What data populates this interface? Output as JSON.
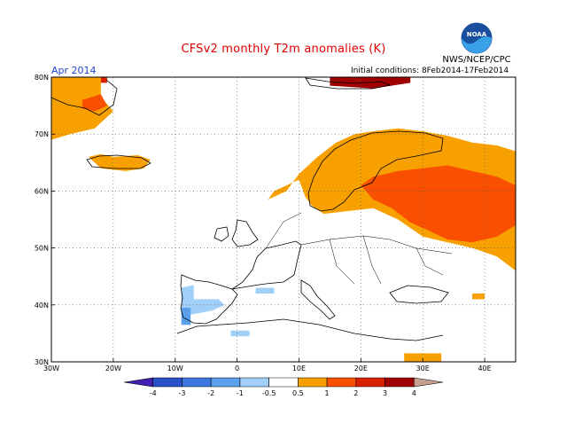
{
  "title": "CFSv2 monthly T2m anomalies (K)",
  "valid_month": "Apr 2014",
  "initial_conditions": "Initial conditions: 8Feb2014-17Feb2014",
  "agency": "NWS/NCEP/CPC",
  "logo_text": "NOAA",
  "map": {
    "lon_range": [
      -30,
      45
    ],
    "lat_range": [
      30,
      80
    ],
    "lon_ticks": [
      {
        "value": -30,
        "label": "30W"
      },
      {
        "value": -20,
        "label": "20W"
      },
      {
        "value": -10,
        "label": "10W"
      },
      {
        "value": 0,
        "label": "0"
      },
      {
        "value": 10,
        "label": "10E"
      },
      {
        "value": 20,
        "label": "20E"
      },
      {
        "value": 30,
        "label": "30E"
      },
      {
        "value": 40,
        "label": "40E"
      }
    ],
    "lat_ticks": [
      {
        "value": 30,
        "label": "30N"
      },
      {
        "value": 40,
        "label": "40N"
      },
      {
        "value": 50,
        "label": "50N"
      },
      {
        "value": 60,
        "label": "60N"
      },
      {
        "value": 70,
        "label": "70N"
      },
      {
        "value": 80,
        "label": "80N"
      }
    ]
  },
  "colorbar": {
    "labels": [
      "-4",
      "-3",
      "-2",
      "-1",
      "-0.5",
      "0.5",
      "1",
      "2",
      "3",
      "4"
    ],
    "colors": [
      "#4020b0",
      "#2850c8",
      "#3c78e0",
      "#5aa0ec",
      "#a0d0f8",
      "#ffffff",
      "#f8a000",
      "#f85000",
      "#d82000",
      "#a00000",
      "#c8a090"
    ]
  },
  "anomaly_regions": [
    {
      "name": "svalbard-far-west",
      "color": "#f8a000",
      "pts": [
        [
          -30,
          80
        ],
        [
          -22,
          80
        ],
        [
          -22,
          76.5
        ],
        [
          -20,
          74
        ],
        [
          -23,
          71
        ],
        [
          -27,
          70
        ],
        [
          -30,
          69
        ]
      ]
    },
    {
      "name": "greenland-red",
      "color": "#f85000",
      "pts": [
        [
          -25,
          76
        ],
        [
          -22,
          77
        ],
        [
          -21,
          75
        ],
        [
          -23,
          74
        ],
        [
          -25,
          74.5
        ]
      ]
    },
    {
      "name": "greenland-dark",
      "color": "#d82000",
      "pts": [
        [
          -22,
          80
        ],
        [
          -21,
          80
        ],
        [
          -21,
          79
        ],
        [
          -22,
          79
        ]
      ]
    },
    {
      "name": "iceland-orange",
      "color": "#f8a000",
      "pts": [
        [
          -24,
          66
        ],
        [
          -22,
          66.5
        ],
        [
          -20,
          66
        ],
        [
          -16,
          66.3
        ],
        [
          -14,
          65.5
        ],
        [
          -15,
          64
        ],
        [
          -18,
          63.5
        ],
        [
          -22,
          64
        ]
      ]
    },
    {
      "name": "scandinavia-russia-orange",
      "color": "#f8a000",
      "pts": [
        [
          10,
          62
        ],
        [
          6,
          60
        ],
        [
          5,
          58.5
        ],
        [
          8,
          60
        ],
        [
          10,
          63
        ],
        [
          13,
          66
        ],
        [
          16,
          68.5
        ],
        [
          19,
          70
        ],
        [
          22,
          70.5
        ],
        [
          26,
          71
        ],
        [
          30,
          70.5
        ],
        [
          34,
          69.7
        ],
        [
          38,
          68.5
        ],
        [
          42,
          68
        ],
        [
          45,
          67
        ],
        [
          45,
          46
        ],
        [
          42,
          48.5
        ],
        [
          38,
          50
        ],
        [
          34,
          51
        ],
        [
          30,
          52
        ],
        [
          26,
          55
        ],
        [
          22,
          57
        ],
        [
          18,
          56.5
        ],
        [
          14,
          56
        ],
        [
          12,
          57.5
        ],
        [
          11,
          59
        ]
      ]
    },
    {
      "name": "russia-red",
      "color": "#f85000",
      "pts": [
        [
          20,
          61
        ],
        [
          22,
          62.5
        ],
        [
          26,
          63.5
        ],
        [
          30,
          64
        ],
        [
          34,
          64.5
        ],
        [
          38,
          63.5
        ],
        [
          42,
          62.5
        ],
        [
          45,
          61
        ],
        [
          45,
          54
        ],
        [
          42,
          52
        ],
        [
          38,
          51
        ],
        [
          34,
          51.5
        ],
        [
          31,
          53
        ],
        [
          28,
          54.5
        ],
        [
          25,
          57
        ],
        [
          22,
          58.5
        ]
      ]
    },
    {
      "name": "arctic-dark-red",
      "color": "#a00000",
      "pts": [
        [
          15,
          80
        ],
        [
          28,
          80
        ],
        [
          28,
          79
        ],
        [
          22,
          78
        ],
        [
          15,
          78.5
        ]
      ]
    },
    {
      "name": "turkey-orange",
      "color": "#f8a000",
      "pts": [
        [
          27,
          31.5
        ],
        [
          33,
          31.5
        ],
        [
          33,
          30
        ],
        [
          27,
          30
        ]
      ]
    },
    {
      "name": "caspian-orange",
      "color": "#f8a000",
      "pts": [
        [
          38,
          42
        ],
        [
          40,
          42
        ],
        [
          40,
          41
        ],
        [
          38,
          41
        ]
      ]
    },
    {
      "name": "iberia-blue",
      "color": "#a0d0f8",
      "pts": [
        [
          -9,
          43
        ],
        [
          -7,
          43.5
        ],
        [
          -7,
          41
        ],
        [
          -3,
          41
        ],
        [
          -2,
          40
        ],
        [
          -4,
          39
        ],
        [
          -9,
          38
        ]
      ]
    },
    {
      "name": "iberia-blue2",
      "color": "#5aa0ec",
      "pts": [
        [
          -9,
          39.5
        ],
        [
          -7.5,
          39.5
        ],
        [
          -7.5,
          36.5
        ],
        [
          -9,
          36.5
        ]
      ]
    },
    {
      "name": "morocco-blue",
      "color": "#a0d0f8",
      "pts": [
        [
          -1,
          35.5
        ],
        [
          2,
          35.5
        ],
        [
          2,
          34.5
        ],
        [
          -1,
          34.5
        ]
      ]
    },
    {
      "name": "balearic-blue",
      "color": "#a0d0f8",
      "pts": [
        [
          3,
          43
        ],
        [
          6,
          43
        ],
        [
          6,
          42
        ],
        [
          3,
          42
        ]
      ]
    }
  ]
}
